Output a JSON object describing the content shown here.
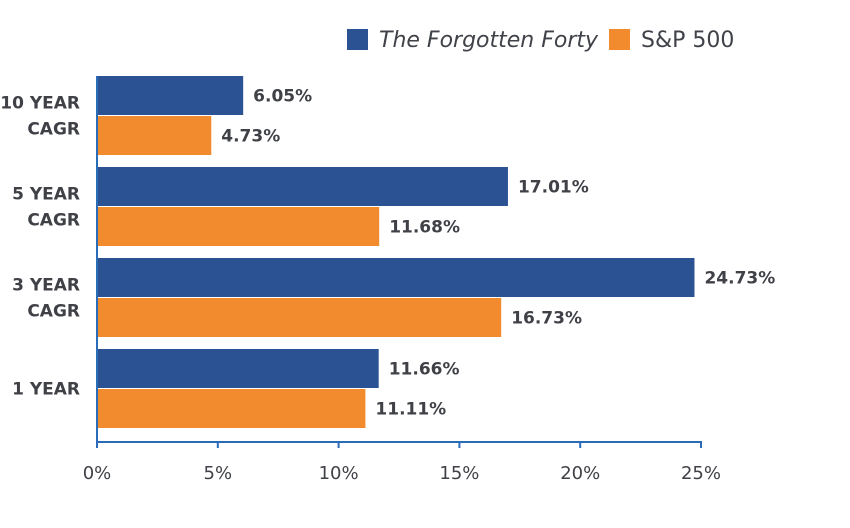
{
  "chart_data": {
    "type": "bar",
    "orientation": "horizontal",
    "categories": [
      "10 YEAR\nCAGR",
      "5 YEAR\nCAGR",
      "3 YEAR\nCAGR",
      "1 YEAR"
    ],
    "series": [
      {
        "name": "The Forgotten Forty",
        "color": "#2b5394",
        "values": [
          6.05,
          17.01,
          24.73,
          11.66
        ],
        "labels": [
          "6.05%",
          "17.01%",
          "24.73%",
          "11.66%"
        ]
      },
      {
        "name": "S&P 500",
        "color": "#f28a2e",
        "values": [
          4.73,
          11.68,
          16.73,
          11.11
        ],
        "labels": [
          "4.73%",
          "11.68%",
          "16.73%",
          "11.11%"
        ]
      }
    ],
    "xlim": [
      0,
      25
    ],
    "x_ticks": [
      0,
      5,
      10,
      15,
      20,
      25
    ],
    "x_tick_labels": [
      "0%",
      "5%",
      "10%",
      "15%",
      "20%",
      "25%"
    ],
    "axis_color": "#2b6cb8",
    "grid": false,
    "legend_position": "top-right"
  }
}
